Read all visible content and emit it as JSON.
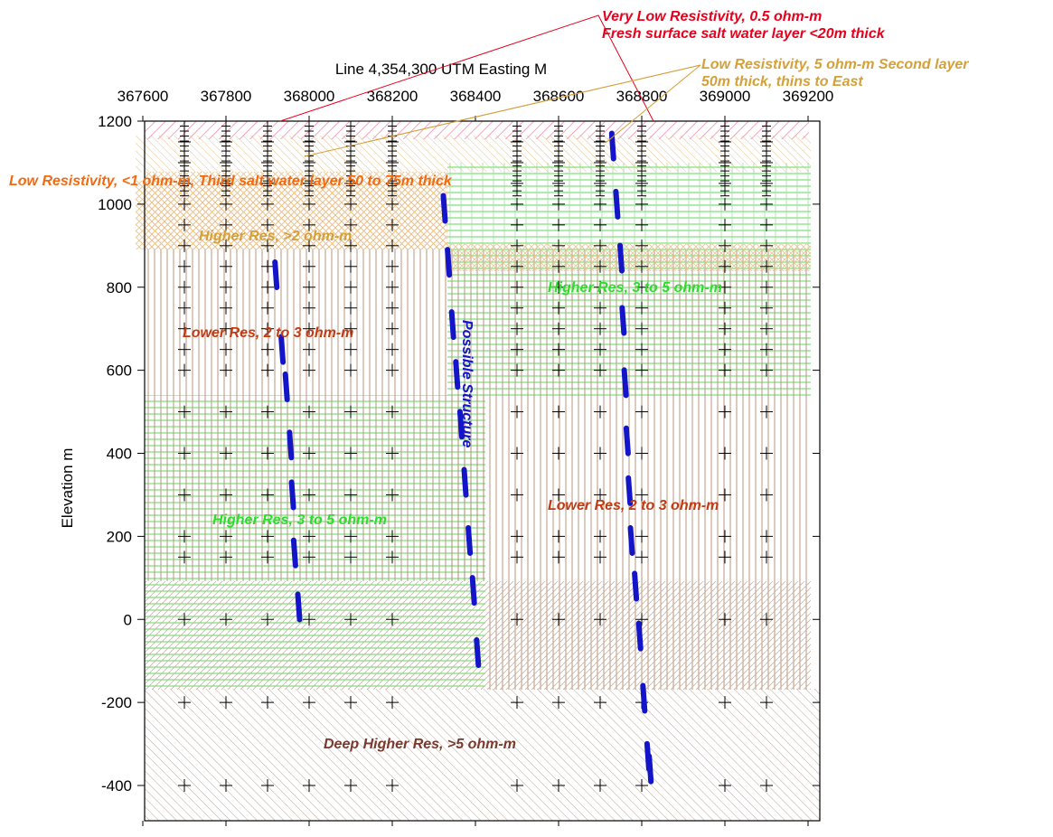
{
  "x_axis": {
    "title": "Line 4,354,300  UTM Easting  M",
    "ticks": [
      "367600",
      "367800",
      "368000",
      "368200",
      "368400",
      "368600",
      "368800",
      "369000",
      "369200"
    ]
  },
  "y_axis": {
    "title": "Elevation m",
    "ticks": [
      "1200",
      "1000",
      "800",
      "600",
      "400",
      "200",
      "0",
      "-200",
      "-400"
    ]
  },
  "callouts": {
    "very_low_line1": "Very Low Resistivity, 0.5 ohm-m",
    "very_low_line2": "Fresh surface salt water layer <20m thick",
    "low5_line1": "Low Resistivity, 5 ohm-m Second layer",
    "low5_line2": "50m thick, thins to East"
  },
  "labels": {
    "third_layer": "Low Resistivity, <1 ohm-m, Third salt water layer 50 to 75m thick",
    "higher_res_2": "Higher Res, >2 ohm-m",
    "lower_res_left": "Lower Res, 2 to 3 ohm-m",
    "higher_res_right": "Higher Res, 3 to 5 ohm-m",
    "possible_structure": "Possible Structure",
    "lower_res_right": "Lower Res, 2 to 3 ohm-m",
    "higher_res_left": "Higher Res, 3 to 5 ohm-m",
    "deep": "Deep Higher Res, >5 ohm-m"
  },
  "colors": {
    "red": "#e8001c",
    "gold": "#d4a03a",
    "orange": "#f06a12",
    "brown": "#8b5a3c",
    "rust": "#c23a12",
    "green": "#2edc2e",
    "blue": "#1414c8",
    "deep": "#7a3a2e"
  },
  "stations": {
    "easting": [
      367700,
      367800,
      367900,
      368000,
      368100,
      368200,
      368500,
      368600,
      368700,
      368800,
      369000,
      369100
    ]
  },
  "structures": {
    "left": [
      [
        367920,
        830
      ],
      [
        367935,
        650
      ],
      [
        367945,
        560
      ],
      [
        367955,
        420
      ],
      [
        367960,
        300
      ],
      [
        367965,
        160
      ],
      [
        367975,
        30
      ]
    ],
    "middle": [
      [
        368325,
        990
      ],
      [
        368335,
        860
      ],
      [
        368345,
        710
      ],
      [
        368355,
        590
      ],
      [
        368365,
        470
      ],
      [
        368375,
        330
      ],
      [
        368385,
        190
      ],
      [
        368395,
        70
      ],
      [
        368405,
        -80
      ]
    ],
    "right": [
      [
        368730,
        1140
      ],
      [
        368740,
        1000
      ],
      [
        368750,
        870
      ],
      [
        368755,
        720
      ],
      [
        368760,
        570
      ],
      [
        368765,
        430
      ],
      [
        368770,
        310
      ],
      [
        368775,
        190
      ],
      [
        368785,
        80
      ],
      [
        368795,
        -40
      ],
      [
        368805,
        -190
      ],
      [
        368815,
        -330
      ],
      [
        368820,
        -360
      ]
    ]
  }
}
